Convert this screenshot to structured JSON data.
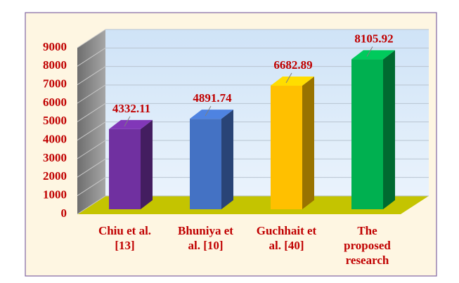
{
  "chart_data": {
    "type": "bar3d",
    "categories": [
      "Chiu et al.\n[13]",
      "Bhuniya et\nal. [10]",
      "Guchhait et\nal. [40]",
      "The\nproposed\nresearch"
    ],
    "series": [
      {
        "name": null,
        "values": [
          4332.11,
          4891.74,
          6682.89,
          8105.92
        ],
        "colors": [
          "#7030a0",
          "#4472c4",
          "#ffc000",
          "#00b050"
        ]
      }
    ],
    "ylim": [
      0,
      9000
    ],
    "yticks": [
      0,
      1000,
      2000,
      3000,
      4000,
      5000,
      6000,
      7000,
      8000,
      9000
    ],
    "grid": true
  }
}
